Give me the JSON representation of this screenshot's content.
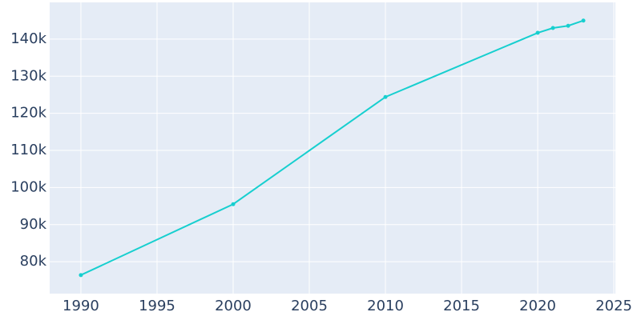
{
  "chart_data": {
    "type": "line",
    "x": [
      1990,
      2000,
      2010,
      2020,
      2021,
      2022,
      2023
    ],
    "series": [
      {
        "color": "#17cfcf",
        "values": [
          76400,
          95500,
          124400,
          141700,
          143000,
          143600,
          145000
        ]
      }
    ],
    "xlim": [
      1987.95,
      2025.1
    ],
    "xticks": [
      1990,
      1995,
      2000,
      2005,
      2010,
      2015,
      2020,
      2025
    ],
    "ylim": [
      71400,
      149900
    ],
    "yticks": [
      {
        "value": 80000,
        "label": "80k"
      },
      {
        "value": 90000,
        "label": "90k"
      },
      {
        "value": 100000,
        "label": "100k"
      },
      {
        "value": 110000,
        "label": "110k"
      },
      {
        "value": 120000,
        "label": "120k"
      },
      {
        "value": 130000,
        "label": "130k"
      },
      {
        "value": 140000,
        "label": "140k"
      }
    ],
    "grid": true
  }
}
